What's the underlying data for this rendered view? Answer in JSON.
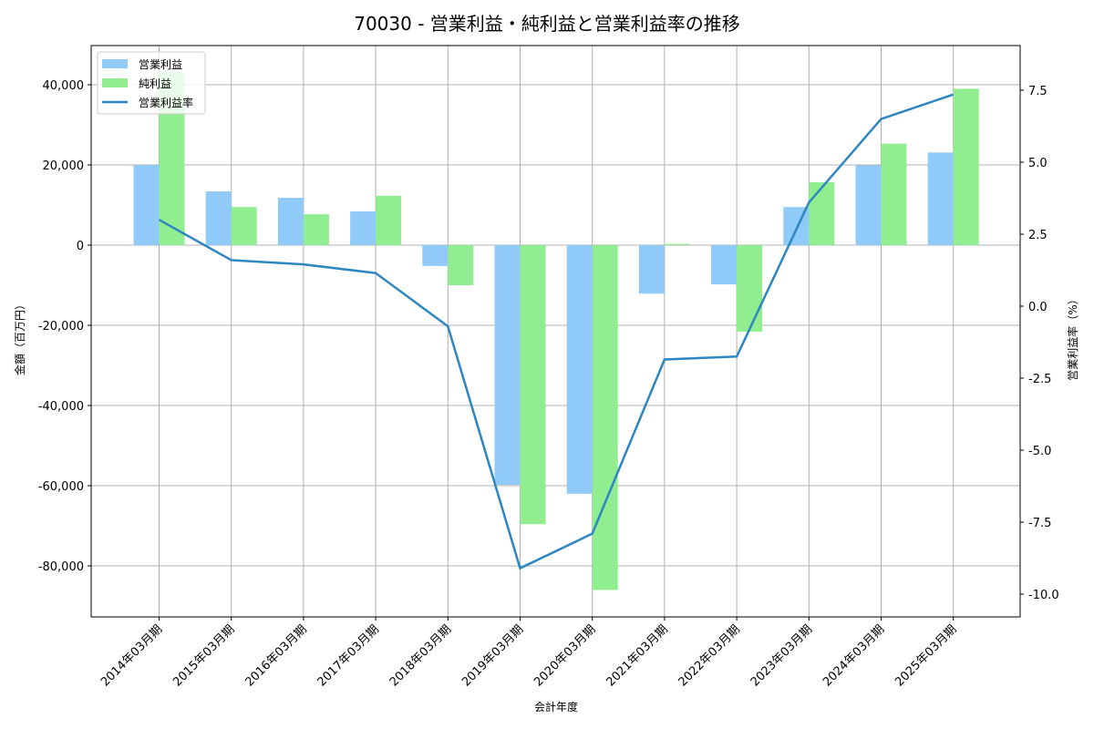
{
  "title": "70030 - 営業利益・純利益と営業利益率の推移",
  "colors": {
    "operating_profit": "#90caf9",
    "net_profit": "#90ee90",
    "operating_margin": "#2e86c1",
    "grid": "#b0b0b0",
    "axis": "#000000"
  },
  "legend": {
    "items": [
      {
        "label": "営業利益",
        "type": "bar",
        "color": "#90caf9"
      },
      {
        "label": "純利益",
        "type": "bar",
        "color": "#90ee90"
      },
      {
        "label": "営業利益率",
        "type": "line",
        "color": "#2e86c1"
      }
    ]
  },
  "axes": {
    "x_label": "会計年度",
    "y_left_label": "金額（百万円）",
    "y_right_label": "営業利益率（%）",
    "y_left_ticks": [
      40000,
      20000,
      0,
      -20000,
      -40000,
      -60000,
      -80000
    ],
    "y_left_tick_labels": [
      "40,000",
      "20,000",
      "0",
      "-20,000",
      "-40,000",
      "-60,000",
      "-80,000"
    ],
    "y_right_ticks": [
      7.5,
      5.0,
      2.5,
      0.0,
      -2.5,
      -5.0,
      -7.5,
      -10.0
    ],
    "y_right_tick_labels": [
      "7.5",
      "5.0",
      "2.5",
      "0.0",
      "-2.5",
      "-5.0",
      "-7.5",
      "-10.0"
    ]
  },
  "chart_data": {
    "type": "bar",
    "title": "70030 - 営業利益・純利益と営業利益率の推移",
    "xlabel": "会計年度",
    "ylabel": "金額（百万円）",
    "y2label": "営業利益率（%）",
    "categories": [
      "2014年03月期",
      "2015年03月期",
      "2016年03月期",
      "2017年03月期",
      "2018年03月期",
      "2019年03月期",
      "2020年03月期",
      "2021年03月期",
      "2022年03月期",
      "2023年03月期",
      "2024年03月期",
      "2025年03月期"
    ],
    "series": [
      {
        "name": "営業利益",
        "type": "bar",
        "axis": "left",
        "values": [
          20000,
          13400,
          11800,
          8400,
          -5200,
          -59800,
          -62000,
          -12100,
          -9800,
          9500,
          19900,
          23100
        ]
      },
      {
        "name": "純利益",
        "type": "bar",
        "axis": "left",
        "values": [
          43200,
          9500,
          7700,
          12300,
          -10000,
          -69600,
          -86000,
          300,
          -21600,
          15700,
          25300,
          39000
        ]
      },
      {
        "name": "営業利益率",
        "type": "line",
        "axis": "right",
        "values": [
          3.0,
          1.6,
          1.45,
          1.15,
          -0.7,
          -9.1,
          -7.9,
          -1.85,
          -1.75,
          3.6,
          6.5,
          7.35
        ]
      }
    ],
    "ylim": [
      -93000,
      49000
    ],
    "y2lim": [
      -10.7,
      8.95
    ],
    "grid": true,
    "legend_position": "upper left"
  }
}
